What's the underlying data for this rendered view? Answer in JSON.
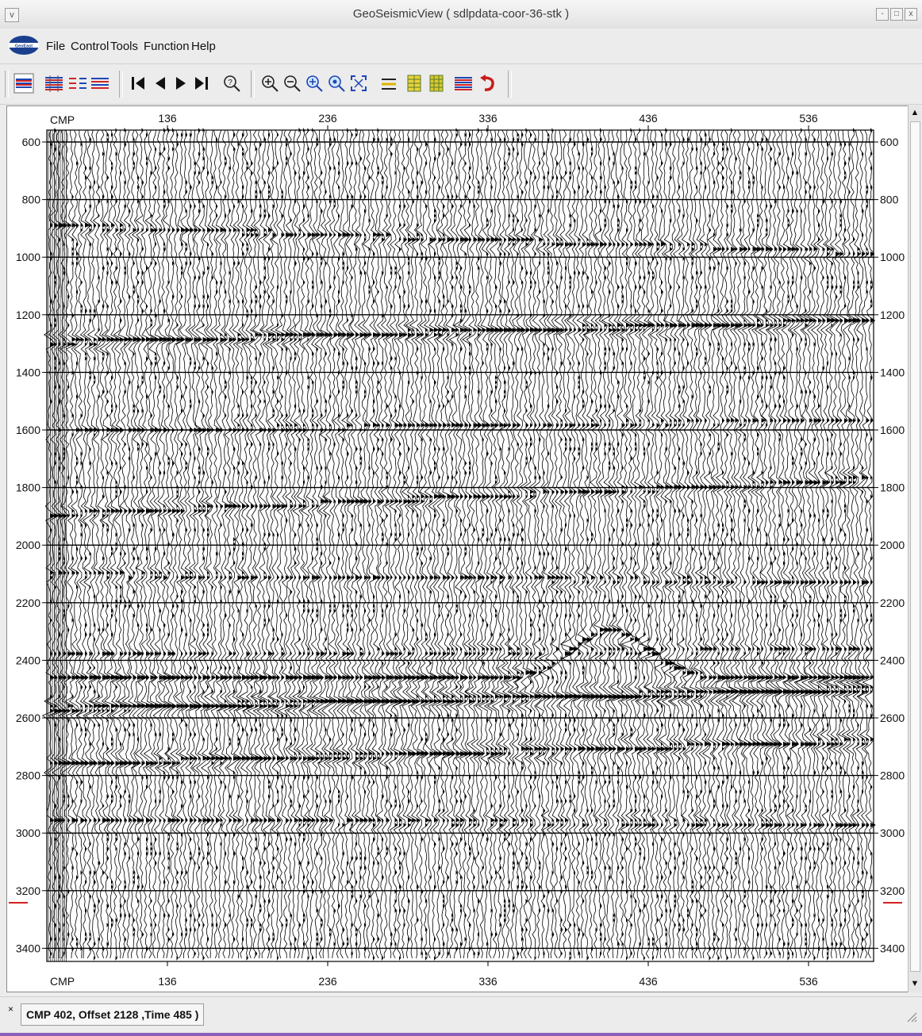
{
  "window": {
    "title": "GeoSeismicView ( sdlpdata-coor-36-stk )",
    "sysmenu_icon": "v",
    "controls": [
      "-",
      "□",
      "x"
    ]
  },
  "menubar": {
    "logo_text": "GeoEast",
    "items": [
      "File",
      "Control",
      "Tools",
      "Function",
      "Help"
    ]
  },
  "toolbar": {
    "icons": [
      "seismic-display-icon",
      "wiggle-red-icon",
      "wiggle-pair-icon",
      "wiggle-mixed-icon",
      "first-icon",
      "prev-icon",
      "next-icon",
      "last-icon",
      "query-zoom-icon",
      "zoom-in-icon",
      "zoom-out-icon",
      "zoom-plus-icon",
      "zoom-search-icon",
      "fit-icon",
      "horizon-icon",
      "grid-yellow-icon",
      "grid-yellow-2-icon",
      "color-bar-icon",
      "undo-icon"
    ]
  },
  "section": {
    "top_axis_label": "CMP",
    "bottom_axis_label": "CMP",
    "x_ticks": [
      "136",
      "236",
      "336",
      "436",
      "536"
    ],
    "y_ticks": [
      "600",
      "800",
      "1000",
      "1200",
      "1400",
      "1600",
      "1800",
      "2000",
      "2200",
      "2400",
      "2600",
      "2800",
      "3000",
      "3200",
      "3400"
    ],
    "cursor_color": "#d42020",
    "trace_color": "#000000",
    "background": "#ffffff"
  },
  "status": {
    "text": "CMP 402, Offset 2128 ,Time 485 )"
  }
}
